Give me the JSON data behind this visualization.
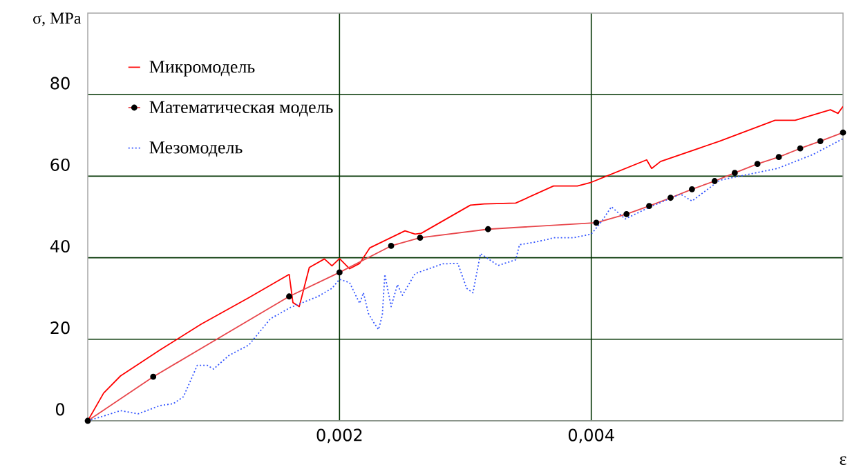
{
  "chart_data": {
    "type": "line",
    "xlabel": "ε",
    "ylabel": "σ, MPa",
    "xlim": [
      0,
      0.006
    ],
    "ylim": [
      0,
      100
    ],
    "xticks": [
      {
        "value": 0.002,
        "label": "0,002"
      },
      {
        "value": 0.004,
        "label": "0,004"
      }
    ],
    "yticks": [
      0,
      20,
      40,
      60,
      80
    ],
    "grid": true,
    "legend": "top left",
    "series": [
      {
        "name": "Микромодель",
        "color": "#ff0000",
        "line_style": "solid",
        "marker": "none",
        "x": [
          0,
          0.000126,
          0.00026,
          0.00057,
          0.0009,
          0.00128,
          0.0016,
          0.00163,
          0.00168,
          0.00176,
          0.00188,
          0.00194,
          0.002,
          0.00208,
          0.00216,
          0.00224,
          0.00252,
          0.0026,
          0.00265,
          0.00304,
          0.00315,
          0.0034,
          0.0037,
          0.00389,
          0.004,
          0.00444,
          0.00448,
          0.00455,
          0.00502,
          0.00546,
          0.00562,
          0.0059,
          0.00596,
          0.006
        ],
        "values": [
          0,
          6.8,
          11,
          17.3,
          23.7,
          30.2,
          35.9,
          29,
          28,
          37.6,
          39.7,
          38,
          39.8,
          37.3,
          38.6,
          42.4,
          46.6,
          45.8,
          46,
          52.9,
          53.2,
          53.4,
          57.6,
          57.6,
          58.5,
          64,
          61.9,
          63.6,
          68.6,
          73.7,
          73.7,
          76.3,
          75.4,
          77.1
        ]
      },
      {
        "name": "Математическая модель",
        "color": "#e8474c",
        "line_style": "solid",
        "marker": "circle",
        "x": [
          0,
          0.00052,
          0.0016,
          0.002,
          0.00241,
          0.00264,
          0.00318,
          0.00404,
          0.00428,
          0.00446,
          0.00463,
          0.0048,
          0.00498,
          0.00514,
          0.00532,
          0.00549,
          0.00566,
          0.00582,
          0.006
        ],
        "values": [
          0,
          10.8,
          30.5,
          36.4,
          42.9,
          44.9,
          47,
          48.6,
          50.7,
          52.7,
          54.7,
          56.8,
          58.8,
          60.8,
          63,
          64.7,
          66.8,
          68.6,
          70.7
        ]
      },
      {
        "name": "Мезомодель",
        "color": "#3355ff",
        "line_style": "dotted",
        "marker": "none",
        "x": [
          0,
          0.00013,
          0.00026,
          0.0004,
          0.00057,
          0.00068,
          0.00076,
          0.00087,
          0.00095,
          0.001,
          0.00112,
          0.00128,
          0.00145,
          0.00161,
          0.00183,
          0.00194,
          0.002,
          0.00208,
          0.00216,
          0.00219,
          0.00223,
          0.00227,
          0.00231,
          0.00234,
          0.00236,
          0.00241,
          0.00246,
          0.0025,
          0.0026,
          0.00282,
          0.00294,
          0.00301,
          0.00306,
          0.00312,
          0.00326,
          0.0034,
          0.00343,
          0.00353,
          0.00364,
          0.0037,
          0.00386,
          0.004,
          0.00408,
          0.00416,
          0.00427,
          0.00447,
          0.00471,
          0.0048,
          0.00502,
          0.00529,
          0.00548,
          0.00576,
          0.006
        ],
        "values": [
          0,
          1.2,
          2.5,
          1.7,
          3.7,
          4.2,
          5.9,
          13.6,
          13.6,
          12.7,
          16,
          18.6,
          25,
          27.8,
          30.5,
          32.5,
          34.7,
          33.9,
          28.8,
          31.4,
          26.3,
          24.2,
          22.4,
          25.9,
          35.9,
          28,
          33.4,
          30.8,
          36.1,
          38.5,
          38.6,
          32.5,
          31.4,
          41,
          38.1,
          39.5,
          43.2,
          43.7,
          44.4,
          44.9,
          44.9,
          45.8,
          48.8,
          52.5,
          49.5,
          52.5,
          55.6,
          53.9,
          59,
          60.7,
          61.9,
          65.3,
          69.2
        ]
      }
    ]
  }
}
